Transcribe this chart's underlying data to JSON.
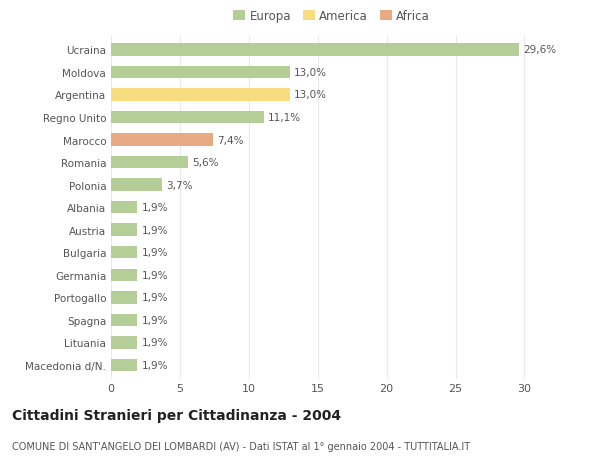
{
  "categories": [
    "Ucraina",
    "Moldova",
    "Argentina",
    "Regno Unito",
    "Marocco",
    "Romania",
    "Polonia",
    "Albania",
    "Austria",
    "Bulgaria",
    "Germania",
    "Portogallo",
    "Spagna",
    "Lituania",
    "Macedonia d/N."
  ],
  "values": [
    29.6,
    13.0,
    13.0,
    11.1,
    7.4,
    5.6,
    3.7,
    1.9,
    1.9,
    1.9,
    1.9,
    1.9,
    1.9,
    1.9,
    1.9
  ],
  "labels": [
    "29,6%",
    "13,0%",
    "13,0%",
    "11,1%",
    "7,4%",
    "5,6%",
    "3,7%",
    "1,9%",
    "1,9%",
    "1,9%",
    "1,9%",
    "1,9%",
    "1,9%",
    "1,9%",
    "1,9%"
  ],
  "colors": [
    "#b5cd96",
    "#b5cd96",
    "#f7dc80",
    "#b5cd96",
    "#e8aa82",
    "#b5cd96",
    "#b5cd96",
    "#b5cd96",
    "#b5cd96",
    "#b5cd96",
    "#b5cd96",
    "#b5cd96",
    "#b5cd96",
    "#b5cd96",
    "#b5cd96"
  ],
  "legend_labels": [
    "Europa",
    "America",
    "Africa"
  ],
  "legend_colors": [
    "#b5cd96",
    "#f7dc80",
    "#e8aa82"
  ],
  "xlim": [
    0,
    32
  ],
  "xticks": [
    0,
    5,
    10,
    15,
    20,
    25,
    30
  ],
  "title": "Cittadini Stranieri per Cittadinanza - 2004",
  "subtitle": "COMUNE DI SANT'ANGELO DEI LOMBARDI (AV) - Dati ISTAT al 1° gennaio 2004 - TUTTITALIA.IT",
  "bg_color": "#ffffff",
  "grid_color": "#e8e8e8",
  "bar_height": 0.55,
  "label_fontsize": 7.5,
  "ytick_fontsize": 7.5,
  "xtick_fontsize": 8,
  "title_fontsize": 10,
  "subtitle_fontsize": 7
}
